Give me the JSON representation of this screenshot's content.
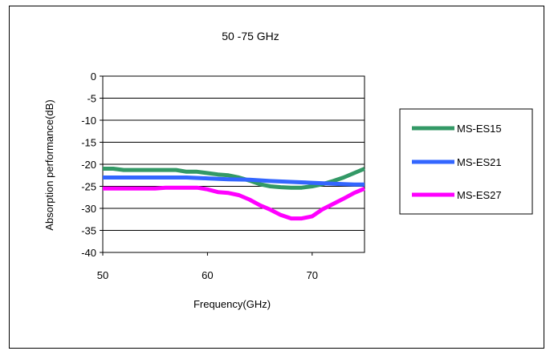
{
  "chart_data": {
    "type": "line",
    "title": "50 -75 GHz",
    "xlabel": "Frequency(GHz)",
    "ylabel": "Absorption performance(dB)",
    "xlim": [
      50,
      75
    ],
    "ylim": [
      -40,
      0
    ],
    "x_ticks": [
      50,
      60,
      70
    ],
    "y_ticks": [
      0,
      -5,
      -10,
      -15,
      -20,
      -25,
      -30,
      -35,
      -40
    ],
    "grid": "horizontal",
    "legend_position": "right",
    "series": [
      {
        "name": "MS-ES15",
        "color": "#339966",
        "x": [
          50,
          51,
          52,
          53,
          54,
          55,
          56,
          57,
          58,
          59,
          60,
          61,
          62,
          63,
          64,
          65,
          66,
          67,
          68,
          69,
          70,
          71,
          72,
          73,
          74,
          75
        ],
        "y": [
          -21,
          -21,
          -21.3,
          -21.3,
          -21.3,
          -21.3,
          -21.3,
          -21.3,
          -21.7,
          -21.7,
          -22,
          -22.3,
          -22.5,
          -23,
          -23.7,
          -24.5,
          -25,
          -25.2,
          -25.3,
          -25.3,
          -25,
          -24.5,
          -23.8,
          -23,
          -22,
          -21
        ]
      },
      {
        "name": "MS-ES21",
        "color": "#3366ff",
        "x": [
          50,
          52,
          54,
          56,
          58,
          60,
          62,
          64,
          66,
          68,
          70,
          72,
          74,
          75
        ],
        "y": [
          -23,
          -23,
          -23,
          -23,
          -23,
          -23.2,
          -23.4,
          -23.5,
          -23.8,
          -24,
          -24.2,
          -24.4,
          -24.6,
          -24.6
        ]
      },
      {
        "name": "MS-ES27",
        "color": "#ff00ff",
        "x": [
          50,
          51,
          52,
          53,
          54,
          55,
          56,
          57,
          58,
          59,
          60,
          61,
          62,
          63,
          64,
          65,
          66,
          67,
          68,
          69,
          70,
          71,
          72,
          73,
          74,
          75
        ],
        "y": [
          -25.5,
          -25.5,
          -25.5,
          -25.5,
          -25.5,
          -25.5,
          -25.3,
          -25.3,
          -25.3,
          -25.3,
          -25.7,
          -26.3,
          -26.5,
          -27,
          -28,
          -29.3,
          -30.3,
          -31.5,
          -32.3,
          -32.3,
          -31.8,
          -30.2,
          -29,
          -27.8,
          -26.5,
          -25.5
        ]
      }
    ]
  }
}
